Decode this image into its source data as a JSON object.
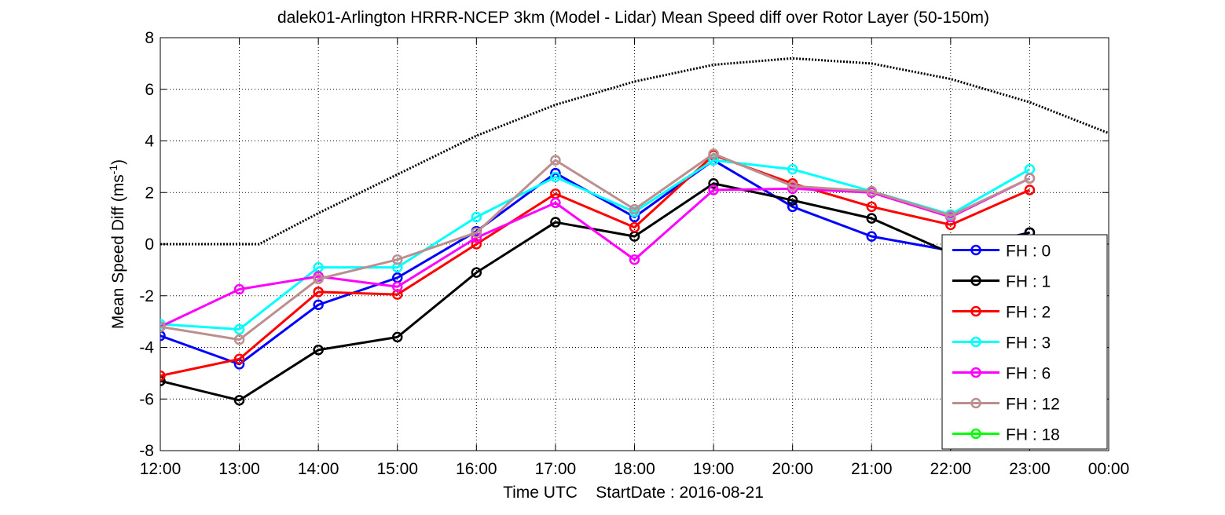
{
  "chart_data": {
    "type": "line",
    "title": "dalek01-Arlington HRRR-NCEP 3km (Model - Lidar) Mean Speed diff over Rotor Layer (50-150m)",
    "xlabel": "Time UTC    StartDate : 2016-08-21",
    "ylabel_main": "Mean Speed Diff (ms",
    "ylabel_sup": "-1",
    "ylabel_end": ")",
    "x_ticks": [
      "12:00",
      "13:00",
      "14:00",
      "15:00",
      "16:00",
      "17:00",
      "18:00",
      "19:00",
      "20:00",
      "21:00",
      "22:00",
      "23:00",
      "00:00"
    ],
    "y_ticks": [
      "-8",
      "-6",
      "-4",
      "-2",
      "0",
      "2",
      "4",
      "6",
      "8"
    ],
    "xlim": [
      12,
      24
    ],
    "ylim": [
      -8,
      8
    ],
    "grid": true,
    "legend_position": "bottom-right",
    "series": [
      {
        "name": "FH : 0",
        "color": "#0000ff",
        "x": [
          12,
          13,
          14,
          15,
          16,
          17,
          18,
          19,
          20,
          21,
          22,
          23
        ],
        "values": [
          -3.55,
          -4.65,
          -2.35,
          -1.3,
          0.5,
          2.75,
          1.05,
          3.25,
          1.45,
          0.3,
          -0.25,
          0.45
        ]
      },
      {
        "name": "FH : 1",
        "color": "#000000",
        "x": [
          12,
          13,
          14,
          15,
          16,
          17,
          18,
          19,
          20,
          21,
          22,
          23
        ],
        "values": [
          -5.3,
          -6.05,
          -4.1,
          -3.6,
          -1.1,
          0.85,
          0.3,
          2.35,
          1.7,
          1.0,
          -0.35,
          0.45
        ]
      },
      {
        "name": "FH : 2",
        "color": "#ff0000",
        "x": [
          12,
          13,
          14,
          15,
          16,
          17,
          18,
          19,
          20,
          21,
          22,
          23
        ],
        "values": [
          -5.1,
          -4.45,
          -1.85,
          -1.95,
          0.0,
          1.95,
          0.65,
          3.45,
          2.35,
          1.45,
          0.75,
          2.1
        ]
      },
      {
        "name": "FH : 3",
        "color": "#00ffff",
        "x": [
          12,
          13,
          14,
          15,
          16,
          17,
          18,
          19,
          20,
          21,
          22,
          23
        ],
        "values": [
          -3.1,
          -3.3,
          -0.9,
          -0.9,
          1.05,
          2.6,
          1.25,
          3.25,
          2.9,
          2.05,
          1.15,
          2.9
        ]
      },
      {
        "name": "FH : 6",
        "color": "#ff00ff",
        "x": [
          12,
          13,
          14,
          15,
          16,
          17,
          18,
          19,
          20,
          21,
          22,
          23
        ],
        "values": [
          -3.2,
          -1.75,
          -1.25,
          -1.65,
          0.25,
          1.6,
          -0.6,
          2.1,
          2.15,
          2.0,
          1.05,
          2.55
        ]
      },
      {
        "name": "FH : 12",
        "color": "#bc8f8f",
        "x": [
          12,
          13,
          14,
          15,
          16,
          17,
          18,
          19,
          20,
          21,
          22,
          23
        ],
        "values": [
          -3.2,
          -3.7,
          -1.35,
          -0.6,
          0.45,
          3.25,
          1.35,
          3.5,
          2.25,
          2.05,
          1.1,
          2.55
        ]
      },
      {
        "name": "FH : 18",
        "color": "#00ff00",
        "x": [],
        "values": []
      }
    ],
    "reference_curve": {
      "style": "dotted",
      "color": "#000000",
      "x": [
        12,
        13,
        13.25,
        14,
        15,
        16,
        17,
        18,
        19,
        20,
        21,
        22,
        23,
        24
      ],
      "values": [
        0,
        0,
        0,
        1.2,
        2.7,
        4.2,
        5.4,
        6.3,
        6.95,
        7.2,
        7.0,
        6.4,
        5.5,
        4.3
      ]
    }
  }
}
